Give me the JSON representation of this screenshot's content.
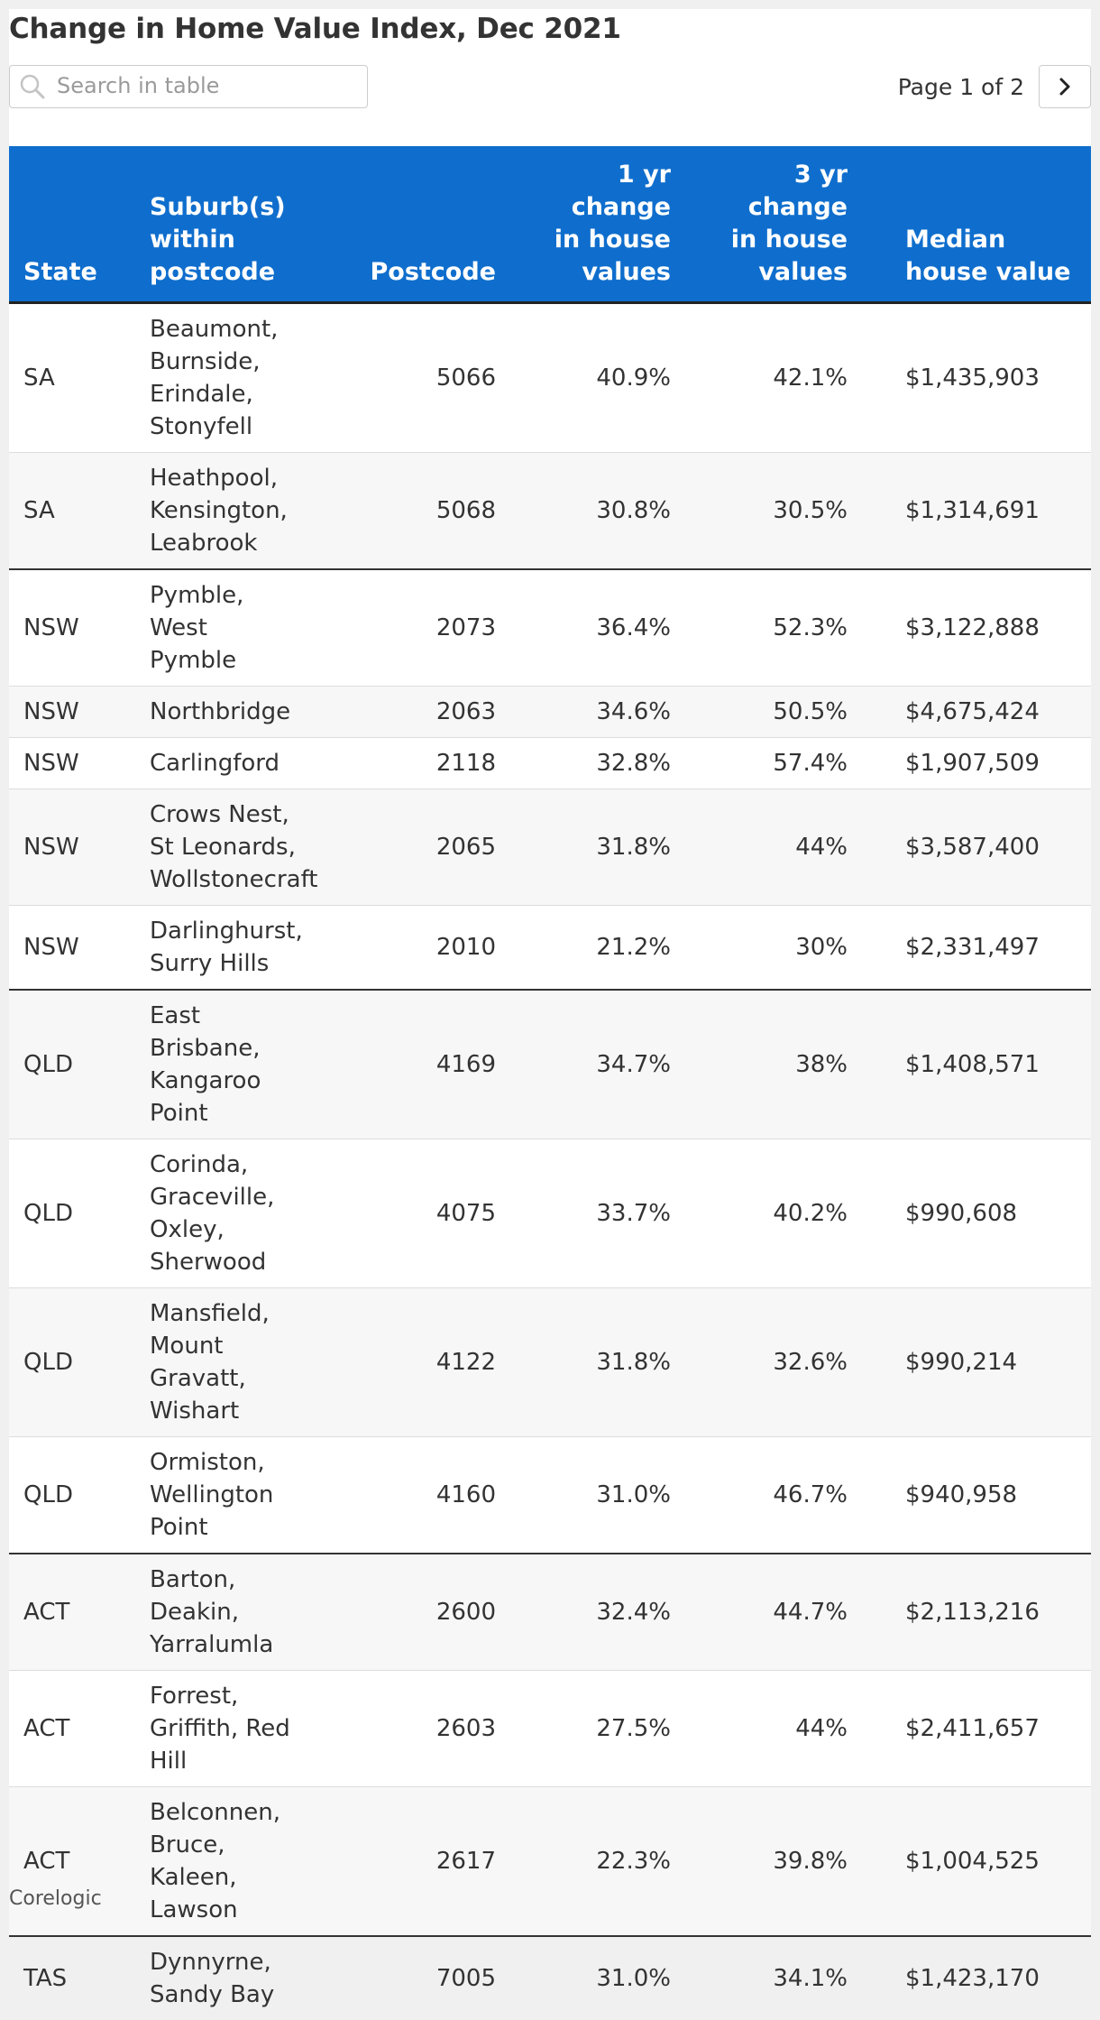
{
  "title": "Change in Home Value Index, Dec 2021",
  "search": {
    "placeholder": "Search in table",
    "icon": "search-icon"
  },
  "pager": {
    "text": "Page 1 of 2",
    "next_icon": "chevron-right-icon"
  },
  "colors": {
    "header_bg": "#0f6ecd",
    "header_text": "#ffffff",
    "stripe": "#f7f7f7"
  },
  "columns": {
    "state": "State",
    "suburbs": "Suburb(s) within postcode",
    "postcode": "Postcode",
    "change1": "1 yr change in house values",
    "change3": "3 yr change in house values",
    "median": "Median house value"
  },
  "rows": [
    {
      "state": "SA",
      "suburbs": "Beaumont, Burnside, Erindale, Stonyfell",
      "postcode": "5066",
      "change1": "40.9%",
      "change3": "42.1%",
      "median": "$1,435,903"
    },
    {
      "state": "SA",
      "suburbs": "Heathpool, Kensington, Leabrook",
      "postcode": "5068",
      "change1": "30.8%",
      "change3": "30.5%",
      "median": "$1,314,691"
    },
    {
      "state": "NSW",
      "suburbs": "Pymble, West Pymble",
      "postcode": "2073",
      "change1": "36.4%",
      "change3": "52.3%",
      "median": "$3,122,888"
    },
    {
      "state": "NSW",
      "suburbs": "Northbridge",
      "postcode": "2063",
      "change1": "34.6%",
      "change3": "50.5%",
      "median": "$4,675,424"
    },
    {
      "state": "NSW",
      "suburbs": "Carlingford",
      "postcode": "2118",
      "change1": "32.8%",
      "change3": "57.4%",
      "median": "$1,907,509"
    },
    {
      "state": "NSW",
      "suburbs": "Crows Nest, St Leonards, Wollstonecraft",
      "postcode": "2065",
      "change1": "31.8%",
      "change3": "44%",
      "median": "$3,587,400"
    },
    {
      "state": "NSW",
      "suburbs": "Darlinghurst, Surry Hills",
      "postcode": "2010",
      "change1": "21.2%",
      "change3": "30%",
      "median": "$2,331,497"
    },
    {
      "state": "QLD",
      "suburbs": "East Brisbane, Kangaroo Point",
      "postcode": "4169",
      "change1": "34.7%",
      "change3": "38%",
      "median": "$1,408,571"
    },
    {
      "state": "QLD",
      "suburbs": "Corinda, Graceville, Oxley, Sherwood",
      "postcode": "4075",
      "change1": "33.7%",
      "change3": "40.2%",
      "median": "$990,608"
    },
    {
      "state": "QLD",
      "suburbs": "Mansfield, Mount Gravatt, Wishart",
      "postcode": "4122",
      "change1": "31.8%",
      "change3": "32.6%",
      "median": "$990,214"
    },
    {
      "state": "QLD",
      "suburbs": "Ormiston, Wellington Point",
      "postcode": "4160",
      "change1": "31.0%",
      "change3": "46.7%",
      "median": "$940,958"
    },
    {
      "state": "ACT",
      "suburbs": "Barton, Deakin, Yarralumla",
      "postcode": "2600",
      "change1": "32.4%",
      "change3": "44.7%",
      "median": "$2,113,216"
    },
    {
      "state": "ACT",
      "suburbs": "Forrest, Griffith, Red Hill",
      "postcode": "2603",
      "change1": "27.5%",
      "change3": "44%",
      "median": "$2,411,657"
    },
    {
      "state": "ACT",
      "suburbs": "Belconnen, Bruce, Kaleen, Lawson",
      "postcode": "2617",
      "change1": "22.3%",
      "change3": "39.8%",
      "median": "$1,004,525"
    },
    {
      "state": "TAS",
      "suburbs": "Dynnyrne, Sandy Bay",
      "postcode": "7005",
      "change1": "31.0%",
      "change3": "34.1%",
      "median": "$1,423,170"
    }
  ],
  "source": "Corelogic"
}
